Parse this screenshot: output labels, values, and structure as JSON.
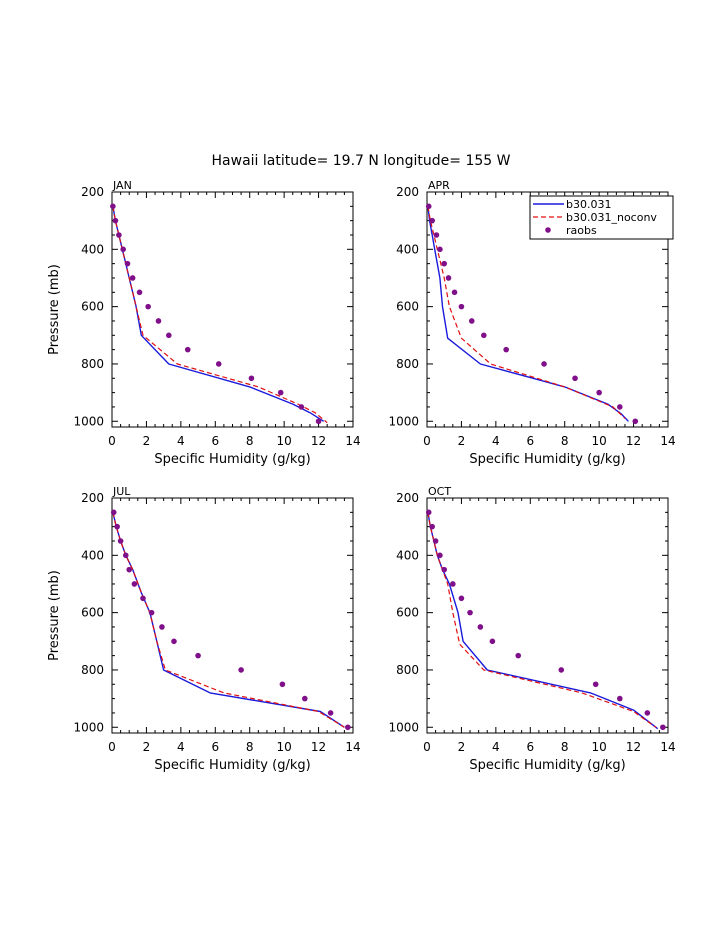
{
  "figure": {
    "title": "Hawaii  latitude= 19.7 N longitude= 155 W"
  },
  "legend": {
    "entries": [
      "b30.031",
      "b30.031_noconv",
      "raobs"
    ],
    "colors": [
      "#1a1adb",
      "#e01010",
      "#80108a"
    ]
  },
  "chart_data": [
    {
      "type": "line",
      "panel": "JAN",
      "xlabel": "Specific Humidity (g/kg)",
      "ylabel": "Pressure (mb)",
      "xlim": [
        0,
        14
      ],
      "ylim": [
        1020,
        200
      ],
      "xticks": [
        "0",
        "2",
        "4",
        "6",
        "8",
        "10",
        "12",
        "14"
      ],
      "yticks": [
        "200",
        "400",
        "600",
        "800",
        "1000"
      ],
      "series": [
        {
          "name": "b30.031",
          "style": "solid",
          "x": [
            0.05,
            0.2,
            0.4,
            0.6,
            0.8,
            1.0,
            1.2,
            1.4,
            1.7,
            3.3,
            8.0,
            10.5,
            11.5,
            12.3
          ],
          "y": [
            250,
            300,
            350,
            400,
            450,
            500,
            550,
            600,
            700,
            800,
            880,
            940,
            970,
            1000
          ]
        },
        {
          "name": "b30.031_noconv",
          "style": "dashed",
          "x": [
            0.05,
            0.2,
            0.4,
            0.6,
            0.8,
            1.0,
            1.2,
            1.4,
            1.8,
            3.8,
            8.5,
            10.8,
            11.8,
            12.5
          ],
          "y": [
            250,
            300,
            350,
            400,
            450,
            500,
            550,
            600,
            700,
            800,
            880,
            940,
            970,
            1005
          ]
        },
        {
          "name": "raobs",
          "style": "markers",
          "x": [
            0.05,
            0.2,
            0.4,
            0.65,
            0.9,
            1.2,
            1.6,
            2.1,
            2.7,
            3.3,
            4.4,
            6.2,
            8.1,
            9.8,
            11.0,
            12.0
          ],
          "y": [
            250,
            300,
            350,
            400,
            450,
            500,
            550,
            600,
            650,
            700,
            750,
            800,
            850,
            900,
            950,
            1000
          ]
        }
      ]
    },
    {
      "type": "line",
      "panel": "APR",
      "xlabel": "Specific Humidity (g/kg)",
      "ylabel": "",
      "xlim": [
        0,
        14
      ],
      "ylim": [
        1020,
        200
      ],
      "xticks": [
        "0",
        "2",
        "4",
        "6",
        "8",
        "10",
        "12",
        "14"
      ],
      "yticks": [
        "200",
        "400",
        "600",
        "800",
        "1000"
      ],
      "series": [
        {
          "name": "b30.031",
          "style": "solid",
          "x": [
            0.05,
            0.15,
            0.3,
            0.45,
            0.6,
            0.75,
            0.9,
            1.2,
            3.1,
            8.0,
            10.5,
            11.3,
            11.7
          ],
          "y": [
            250,
            300,
            350,
            400,
            450,
            500,
            600,
            710,
            800,
            880,
            940,
            975,
            1000
          ]
        },
        {
          "name": "b30.031_noconv",
          "style": "dashed",
          "x": [
            0.05,
            0.2,
            0.4,
            0.6,
            0.8,
            1.0,
            1.3,
            2.0,
            3.7,
            8.0,
            10.8,
            11.5
          ],
          "y": [
            250,
            300,
            350,
            400,
            450,
            500,
            600,
            710,
            800,
            880,
            950,
            990
          ]
        },
        {
          "name": "raobs",
          "style": "markers",
          "x": [
            0.1,
            0.3,
            0.55,
            0.75,
            1.0,
            1.25,
            1.6,
            2.0,
            2.6,
            3.3,
            4.6,
            6.8,
            8.6,
            10.0,
            11.2,
            12.1
          ],
          "y": [
            250,
            300,
            350,
            400,
            450,
            500,
            550,
            600,
            650,
            700,
            750,
            800,
            850,
            900,
            950,
            1000
          ]
        }
      ]
    },
    {
      "type": "line",
      "panel": "JUL",
      "xlabel": "Specific Humidity (g/kg)",
      "ylabel": "Pressure (mb)",
      "xlim": [
        0,
        14
      ],
      "ylim": [
        1020,
        200
      ],
      "xticks": [
        "0",
        "2",
        "4",
        "6",
        "8",
        "10",
        "12",
        "14"
      ],
      "yticks": [
        "200",
        "400",
        "600",
        "800",
        "1000"
      ],
      "series": [
        {
          "name": "b30.031",
          "style": "solid",
          "x": [
            0.05,
            0.25,
            0.5,
            0.8,
            1.2,
            1.7,
            2.2,
            2.6,
            3.0,
            5.7,
            12.1,
            13.5
          ],
          "y": [
            250,
            300,
            350,
            400,
            450,
            530,
            600,
            700,
            800,
            880,
            945,
            1000
          ]
        },
        {
          "name": "b30.031_noconv",
          "style": "dashed",
          "x": [
            0.05,
            0.25,
            0.5,
            0.8,
            1.2,
            1.7,
            2.2,
            2.6,
            3.1,
            6.5,
            12.0,
            13.5
          ],
          "y": [
            250,
            300,
            350,
            400,
            450,
            530,
            600,
            700,
            800,
            880,
            945,
            1000
          ]
        },
        {
          "name": "raobs",
          "style": "markers",
          "x": [
            0.1,
            0.3,
            0.5,
            0.8,
            1.0,
            1.3,
            1.8,
            2.3,
            2.9,
            3.6,
            5.0,
            7.5,
            9.9,
            11.2,
            12.7,
            13.7
          ],
          "y": [
            250,
            300,
            350,
            400,
            450,
            500,
            550,
            600,
            650,
            700,
            750,
            800,
            850,
            900,
            950,
            1000
          ]
        }
      ]
    },
    {
      "type": "line",
      "panel": "OCT",
      "xlabel": "Specific Humidity (g/kg)",
      "ylabel": "",
      "xlim": [
        0,
        14
      ],
      "ylim": [
        1020,
        200
      ],
      "xticks": [
        "0",
        "2",
        "4",
        "6",
        "8",
        "10",
        "12",
        "14"
      ],
      "yticks": [
        "200",
        "400",
        "600",
        "800",
        "1000"
      ],
      "series": [
        {
          "name": "b30.031",
          "style": "solid",
          "x": [
            0.05,
            0.2,
            0.4,
            0.6,
            0.9,
            1.3,
            1.8,
            2.1,
            3.5,
            9.5,
            12.0,
            13.4
          ],
          "y": [
            250,
            300,
            350,
            400,
            450,
            500,
            600,
            700,
            800,
            880,
            940,
            1005
          ]
        },
        {
          "name": "b30.031_noconv",
          "style": "dashed",
          "x": [
            0.05,
            0.2,
            0.4,
            0.6,
            0.9,
            1.2,
            1.5,
            1.9,
            3.3,
            9.0,
            12.0,
            13.3
          ],
          "y": [
            250,
            300,
            350,
            400,
            450,
            500,
            600,
            710,
            800,
            880,
            945,
            1000
          ]
        },
        {
          "name": "raobs",
          "style": "markers",
          "x": [
            0.1,
            0.3,
            0.5,
            0.75,
            1.0,
            1.5,
            2.0,
            2.5,
            3.1,
            3.8,
            5.3,
            7.8,
            9.8,
            11.2,
            12.8,
            13.7
          ],
          "y": [
            250,
            300,
            350,
            400,
            450,
            500,
            550,
            600,
            650,
            700,
            750,
            800,
            850,
            900,
            950,
            1000
          ]
        }
      ]
    }
  ]
}
